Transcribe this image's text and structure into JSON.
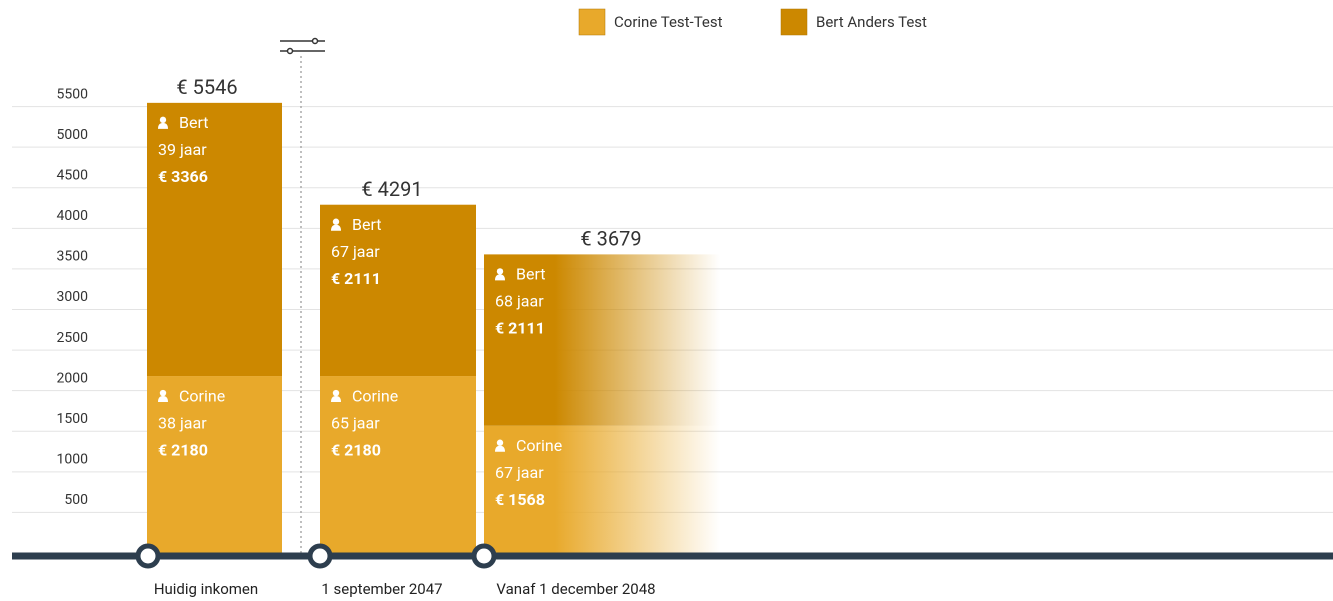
{
  "chart_data": {
    "type": "bar",
    "stacked": true,
    "categories": [
      "Huidig inkomen",
      "1 september 2047",
      "Vanaf 1 december 2048"
    ],
    "series": [
      {
        "name": "Corine Test-Test",
        "color": "#e8a92b",
        "values": [
          2180,
          2180,
          1568
        ],
        "value_labels": [
          "€ 2180",
          "€ 2180",
          "€ 1568"
        ],
        "person": [
          "Corine",
          "Corine",
          "Corine"
        ],
        "ages": [
          "38 jaar",
          "65 jaar",
          "67 jaar"
        ]
      },
      {
        "name": "Bert Anders Test",
        "color": "#cc8800",
        "values": [
          3366,
          2111,
          2111
        ],
        "value_labels": [
          "€ 3366",
          "€ 2111",
          "€ 2111"
        ],
        "person": [
          "Bert",
          "Bert",
          "Bert"
        ],
        "ages": [
          "39 jaar",
          "67 jaar",
          "68 jaar"
        ]
      }
    ],
    "total_labels": [
      "€ 5546",
      "€ 4291",
      "€ 3679"
    ],
    "ylim": [
      0,
      6000
    ],
    "yticks": [
      500,
      1000,
      1500,
      2000,
      2500,
      3000,
      3500,
      4000,
      4500,
      5000,
      5500
    ],
    "grid": true
  }
}
